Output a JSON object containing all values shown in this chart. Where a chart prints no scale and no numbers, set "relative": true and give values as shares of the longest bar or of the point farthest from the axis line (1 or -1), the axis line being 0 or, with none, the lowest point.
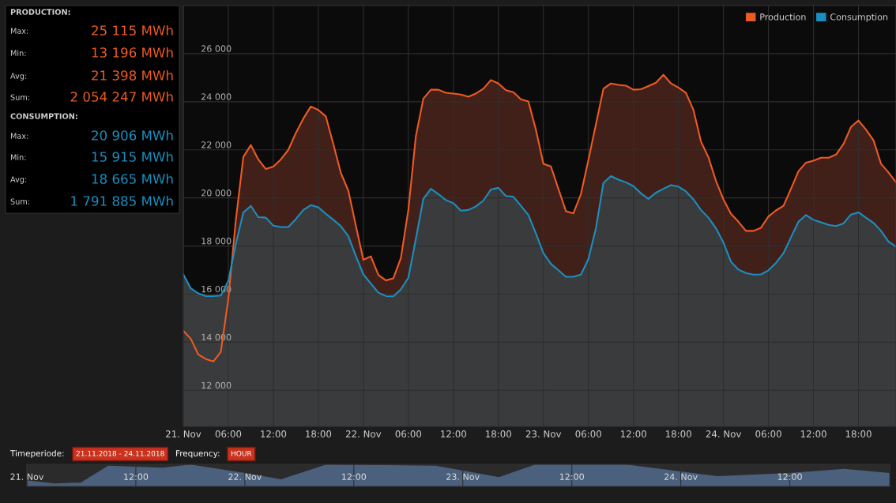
{
  "chart_data": [
    {
      "type": "area",
      "x": [
        "2018-11-21T00:00",
        "2018-11-21T01:00",
        "2018-11-21T02:00",
        "2018-11-21T03:00",
        "2018-11-21T04:00",
        "2018-11-21T05:00",
        "2018-11-21T06:00",
        "2018-11-21T07:00",
        "2018-11-21T08:00",
        "2018-11-21T09:00",
        "2018-11-21T10:00",
        "2018-11-21T11:00",
        "2018-11-21T12:00",
        "2018-11-21T13:00",
        "2018-11-21T14:00",
        "2018-11-21T15:00",
        "2018-11-21T16:00",
        "2018-11-21T17:00",
        "2018-11-21T18:00",
        "2018-11-21T19:00",
        "2018-11-21T20:00",
        "2018-11-21T21:00",
        "2018-11-21T22:00",
        "2018-11-21T23:00",
        "2018-11-22T00:00",
        "2018-11-22T01:00",
        "2018-11-22T02:00",
        "2018-11-22T03:00",
        "2018-11-22T04:00",
        "2018-11-22T05:00",
        "2018-11-22T06:00",
        "2018-11-22T07:00",
        "2018-11-22T08:00",
        "2018-11-22T09:00",
        "2018-11-22T10:00",
        "2018-11-22T11:00",
        "2018-11-22T12:00",
        "2018-11-22T13:00",
        "2018-11-22T14:00",
        "2018-11-22T15:00",
        "2018-11-22T16:00",
        "2018-11-22T17:00",
        "2018-11-22T18:00",
        "2018-11-22T19:00",
        "2018-11-22T20:00",
        "2018-11-22T21:00",
        "2018-11-22T22:00",
        "2018-11-22T23:00",
        "2018-11-23T00:00",
        "2018-11-23T01:00",
        "2018-11-23T02:00",
        "2018-11-23T03:00",
        "2018-11-23T04:00",
        "2018-11-23T05:00",
        "2018-11-23T06:00",
        "2018-11-23T07:00",
        "2018-11-23T08:00",
        "2018-11-23T09:00",
        "2018-11-23T10:00",
        "2018-11-23T11:00",
        "2018-11-23T12:00",
        "2018-11-23T13:00",
        "2018-11-23T14:00",
        "2018-11-23T15:00",
        "2018-11-23T16:00",
        "2018-11-23T17:00",
        "2018-11-23T18:00",
        "2018-11-23T19:00",
        "2018-11-23T20:00",
        "2018-11-23T21:00",
        "2018-11-23T22:00",
        "2018-11-23T23:00",
        "2018-11-24T00:00",
        "2018-11-24T01:00",
        "2018-11-24T02:00",
        "2018-11-24T03:00",
        "2018-11-24T04:00",
        "2018-11-24T05:00",
        "2018-11-24T06:00",
        "2018-11-24T07:00",
        "2018-11-24T08:00",
        "2018-11-24T09:00",
        "2018-11-24T10:00",
        "2018-11-24T11:00",
        "2018-11-24T12:00",
        "2018-11-24T13:00",
        "2018-11-24T14:00",
        "2018-11-24T15:00",
        "2018-11-24T16:00",
        "2018-11-24T17:00",
        "2018-11-24T18:00",
        "2018-11-24T19:00",
        "2018-11-24T20:00",
        "2018-11-24T21:00",
        "2018-11-24T22:00",
        "2018-11-24T23:00"
      ],
      "series": [
        {
          "name": "Production",
          "color": "#ee5a24",
          "values": [
            14470,
            14140,
            13490,
            13300,
            13200,
            13600,
            15790,
            19070,
            21700,
            22200,
            21600,
            21200,
            21300,
            21600,
            22000,
            22700,
            23300,
            23800,
            23660,
            23390,
            22240,
            21040,
            20300,
            18850,
            17430,
            17570,
            16800,
            16570,
            16660,
            17500,
            19510,
            22570,
            24130,
            24500,
            24500,
            24370,
            24340,
            24300,
            24210,
            24340,
            24540,
            24900,
            24760,
            24480,
            24400,
            24100,
            24010,
            22840,
            21420,
            21310,
            20380,
            19450,
            19360,
            20160,
            21580,
            23060,
            24540,
            24760,
            24700,
            24670,
            24500,
            24520,
            24650,
            24790,
            25120,
            24760,
            24590,
            24370,
            23660,
            22350,
            21690,
            20710,
            19940,
            19340,
            19010,
            18630,
            18630,
            18760,
            19230,
            19480,
            19670,
            20380,
            21110,
            21470,
            21550,
            21670,
            21670,
            21800,
            22240,
            22950,
            23220,
            22840,
            22400,
            21420,
            21060,
            20650
          ]
        },
        {
          "name": "Consumption",
          "color": "#1b8fc0",
          "values": [
            16820,
            16240,
            16030,
            15920,
            15920,
            15940,
            16550,
            18080,
            19400,
            19670,
            19200,
            19180,
            18850,
            18790,
            18790,
            19120,
            19500,
            19700,
            19610,
            19340,
            19090,
            18830,
            18410,
            17590,
            16820,
            16440,
            16060,
            15920,
            15910,
            16200,
            16680,
            18300,
            19960,
            20380,
            20160,
            19910,
            19780,
            19470,
            19500,
            19650,
            19890,
            20350,
            20420,
            20080,
            20050,
            19670,
            19290,
            18520,
            17700,
            17260,
            16990,
            16720,
            16720,
            16810,
            17460,
            18740,
            20620,
            20910,
            20760,
            20650,
            20490,
            20190,
            19960,
            20220,
            20380,
            20530,
            20470,
            20270,
            19940,
            19500,
            19180,
            18740,
            18140,
            17350,
            17020,
            16880,
            16810,
            16820,
            16990,
            17300,
            17700,
            18360,
            19010,
            19290,
            19090,
            18990,
            18880,
            18830,
            18940,
            19310,
            19400,
            19180,
            18960,
            18630,
            18190,
            17970
          ]
        }
      ],
      "xlim": [
        "2018-11-21T00:00",
        "2018-11-24T23:00"
      ],
      "xticks": [
        {
          "value": "2018-11-21T00:00",
          "label": "21. Nov"
        },
        {
          "value": "2018-11-21T06:00",
          "label": "06:00"
        },
        {
          "value": "2018-11-21T12:00",
          "label": "12:00"
        },
        {
          "value": "2018-11-21T18:00",
          "label": "18:00"
        },
        {
          "value": "2018-11-22T00:00",
          "label": "22. Nov"
        },
        {
          "value": "2018-11-22T06:00",
          "label": "06:00"
        },
        {
          "value": "2018-11-22T12:00",
          "label": "12:00"
        },
        {
          "value": "2018-11-22T18:00",
          "label": "18:00"
        },
        {
          "value": "2018-11-23T00:00",
          "label": "23. Nov"
        },
        {
          "value": "2018-11-23T06:00",
          "label": "06:00"
        },
        {
          "value": "2018-11-23T12:00",
          "label": "12:00"
        },
        {
          "value": "2018-11-23T18:00",
          "label": "18:00"
        },
        {
          "value": "2018-11-24T00:00",
          "label": "24. Nov"
        },
        {
          "value": "2018-11-24T06:00",
          "label": "06:00"
        },
        {
          "value": "2018-11-24T12:00",
          "label": "12:00"
        },
        {
          "value": "2018-11-24T18:00",
          "label": "18:00"
        }
      ],
      "ylim": [
        10500,
        28000
      ],
      "yticks": [
        {
          "value": 12000,
          "label": "12 000"
        },
        {
          "value": 14000,
          "label": "14 000"
        },
        {
          "value": 16000,
          "label": "16 000"
        },
        {
          "value": 18000,
          "label": "18 000"
        },
        {
          "value": 20000,
          "label": "20 000"
        },
        {
          "value": 22000,
          "label": "22 000"
        },
        {
          "value": 24000,
          "label": "24 000"
        },
        {
          "value": 26000,
          "label": "26 000"
        }
      ],
      "grid": true,
      "legend": "top right",
      "annotations": [
        "PRODUCTION:",
        "Max:",
        "25 115 MWh",
        "Min:",
        "13 196 MWh",
        "Avg:",
        "21 398 MWh",
        "Sum:",
        "2 054 247 MWh",
        "CONSUMPTION:",
        "Max:",
        "20 906 MWh",
        "Min:",
        "15 915 MWh",
        "Avg:",
        "18 665 MWh",
        "Sum:",
        "1 791 885 MWh",
        "Timeperiode:",
        "21.11.2018 - 24.11.2018",
        "Frequency:",
        "HOUR"
      ]
    },
    {
      "type": "area",
      "relative": true,
      "color": "#4a607c",
      "x": [
        "2018-11-21T00:00",
        "2018-11-21T03:00",
        "2018-11-21T06:00",
        "2018-11-21T09:00",
        "2018-11-21T15:00",
        "2018-11-21T18:00",
        "2018-11-22T00:00",
        "2018-11-22T04:00",
        "2018-11-22T09:00",
        "2018-11-22T21:00",
        "2018-11-23T04:00",
        "2018-11-23T08:00",
        "2018-11-23T18:00",
        "2018-11-24T04:00",
        "2018-11-24T12:00",
        "2018-11-24T18:00",
        "2018-11-24T23:00"
      ],
      "values": [
        0.25,
        0.1,
        0.15,
        0.95,
        0.85,
        1.0,
        0.6,
        0.3,
        1.0,
        0.95,
        0.4,
        1.0,
        1.0,
        0.45,
        0.6,
        0.8,
        0.6
      ],
      "xlim": [
        "2018-11-21T00:00",
        "2018-11-24T23:00"
      ],
      "xticks": [
        {
          "value": "2018-11-21T00:00",
          "label": "21. Nov"
        },
        {
          "value": "2018-11-21T12:00",
          "label": "12:00"
        },
        {
          "value": "2018-11-22T00:00",
          "label": "22. Nov"
        },
        {
          "value": "2018-11-22T12:00",
          "label": "12:00"
        },
        {
          "value": "2018-11-23T00:00",
          "label": "23. Nov"
        },
        {
          "value": "2018-11-23T12:00",
          "label": "12:00"
        },
        {
          "value": "2018-11-24T00:00",
          "label": "24. Nov"
        },
        {
          "value": "2018-11-24T12:00",
          "label": "12:00"
        }
      ],
      "tick_labels": "x",
      "grid": "x"
    }
  ]
}
